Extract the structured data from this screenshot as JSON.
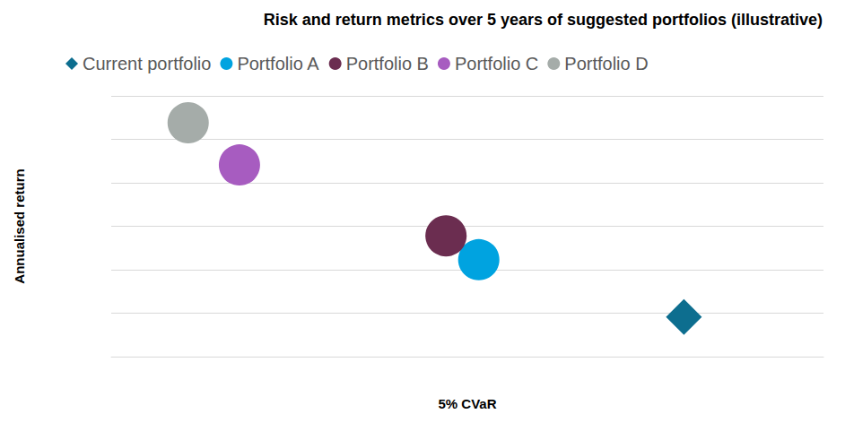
{
  "chart_data": {
    "type": "scatter",
    "title": "Risk and return metrics over 5 years of suggested portfolios (illustrative)",
    "x_label": "5% CVaR",
    "y_label": "Annualised return",
    "xlim": [
      0,
      10
    ],
    "ylim": [
      0,
      6
    ],
    "yticks": [
      0,
      1,
      2,
      3,
      4,
      5,
      6
    ],
    "grid": true,
    "tick_labels": false,
    "legend": "top",
    "series": [
      {
        "name": "Current portfolio",
        "color": "#0d6e8f",
        "marker": "diamond",
        "x": [
          8.04
        ],
        "values": [
          0.91
        ]
      },
      {
        "name": "Portfolio A",
        "color": "#00a3e0",
        "marker": "circle",
        "x": [
          5.16
        ],
        "values": [
          2.23
        ]
      },
      {
        "name": "Portfolio B",
        "color": "#6b2d50",
        "marker": "circle",
        "x": [
          4.7
        ],
        "values": [
          2.78
        ]
      },
      {
        "name": "Portfolio C",
        "color": "#a75cc0",
        "marker": "circle",
        "x": [
          1.8
        ],
        "values": [
          4.41
        ]
      },
      {
        "name": "Portfolio D",
        "color": "#a5aca9",
        "marker": "circle",
        "x": [
          1.08
        ],
        "values": [
          5.38
        ]
      }
    ]
  }
}
